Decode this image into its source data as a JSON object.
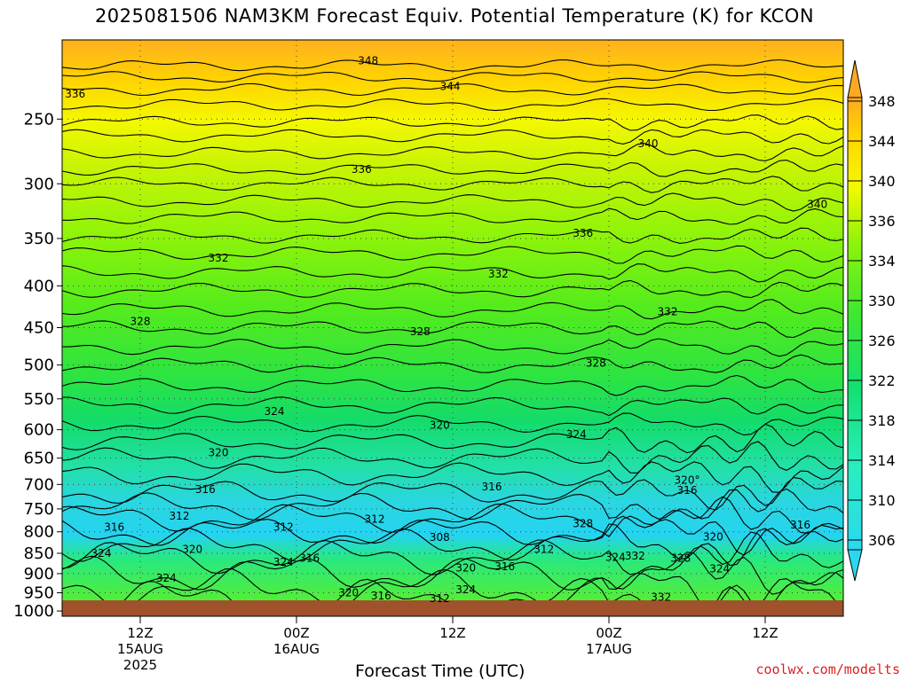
{
  "title": "2025081506 NAM3KM Forecast Equiv. Potential Temperature (K) for KCON",
  "watermark": "coolwx.com/modelts",
  "chart_data": {
    "type": "heatmap",
    "title": "2025081506 NAM3KM Forecast Equiv. Potential Temperature (K) for KCON",
    "xlabel": "Forecast Time (UTC)",
    "ylabel": "",
    "y_axis": {
      "ticks": [
        "250",
        "300",
        "350",
        "400",
        "450",
        "500",
        "550",
        "600",
        "650",
        "700",
        "750",
        "800",
        "850",
        "900",
        "950",
        "1000"
      ],
      "range_hpa": [
        1000,
        200
      ],
      "scale": "log-pressure"
    },
    "x_axis": {
      "range_hours": [
        6,
        66
      ],
      "ticks": [
        {
          "label": "12Z",
          "date": "15AUG",
          "year": "2025",
          "hour": 12
        },
        {
          "label": "00Z",
          "date": "16AUG",
          "year": "",
          "hour": 24
        },
        {
          "label": "12Z",
          "date": "",
          "year": "",
          "hour": 36
        },
        {
          "label": "00Z",
          "date": "17AUG",
          "year": "",
          "hour": 48
        },
        {
          "label": "12Z",
          "date": "",
          "year": "",
          "hour": 60
        }
      ]
    },
    "grid": true,
    "colorbar": {
      "labels": [
        "306",
        "310",
        "314",
        "318",
        "322",
        "326",
        "330",
        "334",
        "336",
        "340",
        "344",
        "348"
      ],
      "colors": [
        "#2ad8f0",
        "#2ae6d8",
        "#2aeeb8",
        "#20e894",
        "#10e070",
        "#2ee83e",
        "#58f020",
        "#88f40a",
        "#b0f408",
        "#f0f800",
        "#ffe000",
        "#ffb020"
      ]
    },
    "contour_labels": [
      {
        "text": "348",
        "hour": 29.5,
        "hpa": 212
      },
      {
        "text": "344",
        "hour": 35.8,
        "hpa": 228
      },
      {
        "text": "336",
        "hour": 7.0,
        "hpa": 233
      },
      {
        "text": "340",
        "hour": 51.0,
        "hpa": 268
      },
      {
        "text": "336",
        "hour": 29.0,
        "hpa": 288
      },
      {
        "text": "340",
        "hour": 64.0,
        "hpa": 318
      },
      {
        "text": "336",
        "hour": 46.0,
        "hpa": 345
      },
      {
        "text": "332",
        "hour": 18.0,
        "hpa": 370
      },
      {
        "text": "332",
        "hour": 39.5,
        "hpa": 387
      },
      {
        "text": "332",
        "hour": 52.5,
        "hpa": 430
      },
      {
        "text": "328",
        "hour": 12.0,
        "hpa": 442
      },
      {
        "text": "328",
        "hour": 33.5,
        "hpa": 455
      },
      {
        "text": "328",
        "hour": 47.0,
        "hpa": 497
      },
      {
        "text": "324",
        "hour": 22.3,
        "hpa": 570
      },
      {
        "text": "320",
        "hour": 35.0,
        "hpa": 592
      },
      {
        "text": "324",
        "hour": 45.5,
        "hpa": 608
      },
      {
        "text": "320",
        "hour": 18.0,
        "hpa": 640
      },
      {
        "text": "316",
        "hour": 17.0,
        "hpa": 710
      },
      {
        "text": "316",
        "hour": 39.0,
        "hpa": 705
      },
      {
        "text": "320°",
        "hour": 54.0,
        "hpa": 692
      },
      {
        "text": "316",
        "hour": 54.0,
        "hpa": 712
      },
      {
        "text": "312",
        "hour": 15.0,
        "hpa": 765
      },
      {
        "text": "312",
        "hour": 23.0,
        "hpa": 790
      },
      {
        "text": "312",
        "hour": 30.0,
        "hpa": 772
      },
      {
        "text": "316",
        "hour": 10.0,
        "hpa": 790
      },
      {
        "text": "328",
        "hour": 46.0,
        "hpa": 782
      },
      {
        "text": "316",
        "hour": 62.7,
        "hpa": 785
      },
      {
        "text": "308",
        "hour": 35.0,
        "hpa": 813
      },
      {
        "text": "320",
        "hour": 56.0,
        "hpa": 812
      },
      {
        "text": "320",
        "hour": 16.0,
        "hpa": 840
      },
      {
        "text": "312",
        "hour": 43.0,
        "hpa": 840
      },
      {
        "text": "324",
        "hour": 9.0,
        "hpa": 850
      },
      {
        "text": "316",
        "hour": 25.0,
        "hpa": 862
      },
      {
        "text": "324",
        "hour": 23.0,
        "hpa": 872
      },
      {
        "text": "324",
        "hour": 48.5,
        "hpa": 860
      },
      {
        "text": "332",
        "hour": 50.0,
        "hpa": 856
      },
      {
        "text": "328",
        "hour": 53.5,
        "hpa": 862
      },
      {
        "text": "320",
        "hour": 37.0,
        "hpa": 886
      },
      {
        "text": "316",
        "hour": 40.0,
        "hpa": 882
      },
      {
        "text": "324",
        "hour": 56.5,
        "hpa": 888
      },
      {
        "text": "324",
        "hour": 14.0,
        "hpa": 912
      },
      {
        "text": "324",
        "hour": 37.0,
        "hpa": 942
      },
      {
        "text": "320",
        "hour": 28.0,
        "hpa": 950
      },
      {
        "text": "316",
        "hour": 30.5,
        "hpa": 958
      },
      {
        "text": "312",
        "hour": 35.0,
        "hpa": 965
      },
      {
        "text": "332",
        "hour": 52.0,
        "hpa": 962
      }
    ]
  }
}
